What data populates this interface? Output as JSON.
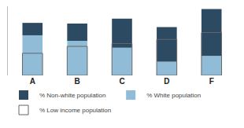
{
  "chart_data": {
    "type": "bar",
    "stacked": true,
    "categories": [
      "A",
      "B",
      "C",
      "D",
      "F"
    ],
    "series": [
      {
        "name": "% Non-white population",
        "color": "#2d4a63",
        "values": [
          0.18,
          0.25,
          0.42,
          0.5,
          0.68
        ]
      },
      {
        "name": "% White population",
        "color": "#90bcd8",
        "values": [
          0.58,
          0.5,
          0.4,
          0.2,
          0.28
        ]
      },
      {
        "name": "% Low income population",
        "type": "outline",
        "color": "#666666",
        "values": [
          0.32,
          0.42,
          0.46,
          0.52,
          0.62
        ]
      }
    ],
    "ylim": [
      0,
      1.0
    ],
    "tick_labels": "x",
    "grid": false,
    "legend": "bottom"
  }
}
